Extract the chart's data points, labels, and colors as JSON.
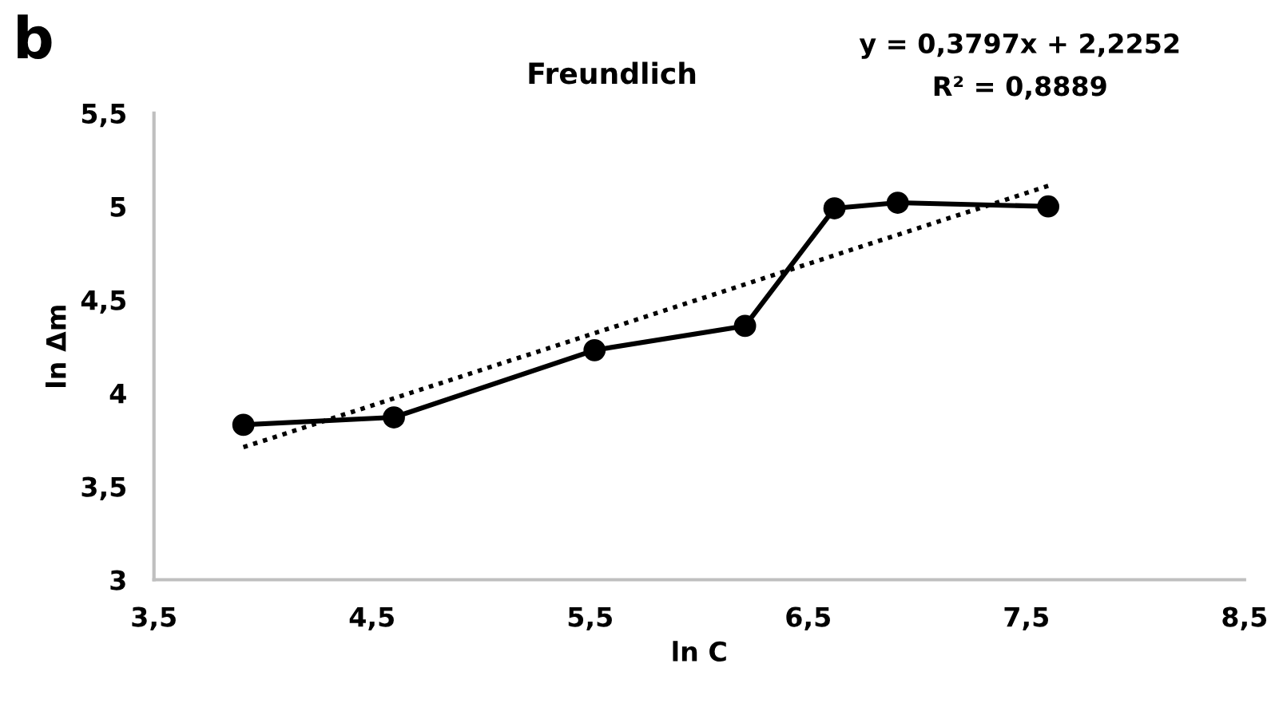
{
  "chart_data": {
    "type": "line",
    "title": "Freundlich",
    "xlabel": "ln C",
    "ylabel": "ln Δm",
    "annotations": [
      "b",
      "y = 0,3797x + 2,2252",
      "R² = 0,8889"
    ],
    "series": [
      {
        "color": "#000000",
        "marker": "circle",
        "line_style": "solid",
        "x": [
          3.91,
          4.6,
          5.52,
          6.21,
          6.62,
          6.91,
          7.6
        ],
        "values": [
          3.83,
          3.87,
          4.23,
          4.36,
          4.99,
          5.02,
          5.0
        ]
      },
      {
        "type": "line",
        "color": "#000000",
        "marker": "none",
        "line_style": "dotted",
        "x": [
          3.91,
          7.6
        ],
        "values": [
          3.71,
          5.11
        ]
      }
    ],
    "xlim": [
      3.5,
      8.5
    ],
    "xticks": [
      {
        "value": 3.5,
        "label": "3,5"
      },
      {
        "value": 4.5,
        "label": "4,5"
      },
      {
        "value": 5.5,
        "label": "5,5"
      },
      {
        "value": 6.5,
        "label": "6,5"
      },
      {
        "value": 7.5,
        "label": "7,5"
      },
      {
        "value": 8.5,
        "label": "8,5"
      }
    ],
    "ylim": [
      3,
      5.5
    ],
    "yticks": [
      3,
      {
        "value": 3.5,
        "label": "3,5"
      },
      4,
      {
        "value": 4.5,
        "label": "4,5"
      },
      5,
      {
        "value": 5.5,
        "label": "5,5"
      }
    ]
  }
}
